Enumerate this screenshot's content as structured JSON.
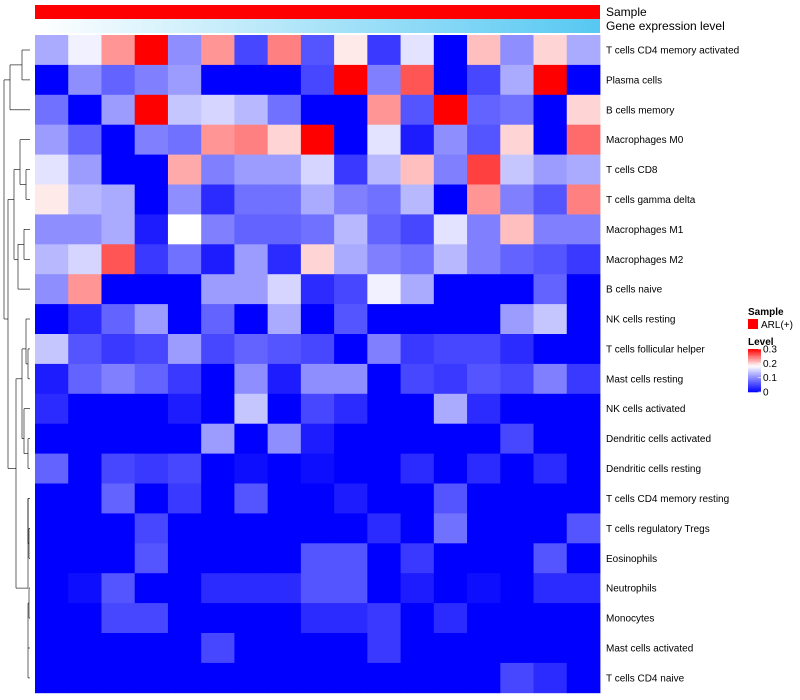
{
  "chart_data": {
    "type": "heatmap",
    "title": "",
    "annotation_tracks": [
      {
        "name": "Sample",
        "color_start": "#ff0000",
        "color_end": "#ff0000"
      },
      {
        "name": "Gene expression level",
        "color_start": "#ffffff",
        "color_end": "#56c8f2"
      }
    ],
    "rows": [
      "T cells CD4 memory activated",
      "Plasma cells",
      "B cells memory",
      "Macrophages M0",
      "T cells CD8",
      "T cells gamma delta",
      "Macrophages M1",
      "Macrophages M2",
      "B cells naive",
      "NK cells resting",
      "T cells follicular helper",
      "Mast cells resting",
      "NK cells activated",
      "Dendritic cells activated",
      "Dendritic cells resting",
      "T cells CD4 memory resting",
      "T cells regulatory  Tregs",
      "Eosinophils",
      "Neutrophils",
      "Monocytes",
      "Mast cells activated",
      "T cells CD4 naive"
    ],
    "n_columns": 17,
    "values": [
      [
        0.12,
        0.17,
        0.23,
        0.3,
        0.1,
        0.23,
        0.05,
        0.24,
        0.06,
        0.19,
        0.04,
        0.16,
        0.0,
        0.21,
        0.1,
        0.2,
        0.12
      ],
      [
        0.0,
        0.1,
        0.07,
        0.09,
        0.11,
        0.0,
        0.0,
        0.0,
        0.05,
        0.3,
        0.09,
        0.26,
        0.0,
        0.05,
        0.12,
        0.3,
        0.0
      ],
      [
        0.08,
        0.0,
        0.11,
        0.3,
        0.14,
        0.15,
        0.13,
        0.08,
        0.0,
        0.0,
        0.23,
        0.06,
        0.3,
        0.07,
        0.08,
        0.0,
        0.2
      ],
      [
        0.11,
        0.07,
        0.0,
        0.09,
        0.08,
        0.23,
        0.24,
        0.2,
        0.3,
        0.0,
        0.16,
        0.02,
        0.1,
        0.06,
        0.2,
        0.0,
        0.25
      ],
      [
        0.16,
        0.11,
        0.0,
        0.0,
        0.22,
        0.09,
        0.11,
        0.11,
        0.15,
        0.04,
        0.13,
        0.21,
        0.09,
        0.27,
        0.14,
        0.11,
        0.12
      ],
      [
        0.19,
        0.13,
        0.12,
        0.0,
        0.1,
        0.03,
        0.08,
        0.08,
        0.12,
        0.09,
        0.08,
        0.13,
        0.0,
        0.23,
        0.09,
        0.06,
        0.24
      ],
      [
        0.1,
        0.1,
        0.12,
        0.02,
        0.18,
        0.09,
        0.07,
        0.07,
        0.08,
        0.13,
        0.07,
        0.05,
        0.16,
        0.09,
        0.21,
        0.09,
        0.09
      ],
      [
        0.13,
        0.15,
        0.26,
        0.04,
        0.08,
        0.02,
        0.11,
        0.03,
        0.2,
        0.12,
        0.09,
        0.08,
        0.13,
        0.09,
        0.07,
        0.06,
        0.04
      ],
      [
        0.1,
        0.23,
        0.0,
        0.0,
        0.0,
        0.11,
        0.11,
        0.15,
        0.03,
        0.05,
        0.17,
        0.12,
        0.0,
        0.0,
        0.0,
        0.07,
        0.0
      ],
      [
        0.0,
        0.03,
        0.07,
        0.11,
        0.0,
        0.07,
        0.0,
        0.12,
        0.0,
        0.06,
        0.0,
        0.0,
        0.0,
        0.0,
        0.11,
        0.14,
        0.0
      ],
      [
        0.14,
        0.06,
        0.04,
        0.05,
        0.11,
        0.05,
        0.07,
        0.06,
        0.05,
        0.0,
        0.09,
        0.04,
        0.05,
        0.05,
        0.03,
        0.0,
        0.0
      ],
      [
        0.02,
        0.07,
        0.09,
        0.07,
        0.04,
        0.0,
        0.1,
        0.02,
        0.1,
        0.1,
        0.0,
        0.05,
        0.04,
        0.06,
        0.05,
        0.09,
        0.04
      ],
      [
        0.03,
        0.0,
        0.0,
        0.0,
        0.02,
        0.0,
        0.14,
        0.0,
        0.05,
        0.03,
        0.0,
        0.0,
        0.12,
        0.03,
        0.0,
        0.0,
        0.0
      ],
      [
        0.0,
        0.0,
        0.0,
        0.0,
        0.0,
        0.11,
        0.0,
        0.1,
        0.02,
        0.0,
        0.0,
        0.0,
        0.0,
        0.0,
        0.05,
        0.0,
        0.0
      ],
      [
        0.07,
        0.0,
        0.05,
        0.04,
        0.05,
        0.0,
        0.01,
        0.0,
        0.01,
        0.0,
        0.0,
        0.03,
        0.0,
        0.03,
        0.0,
        0.03,
        0.0
      ],
      [
        0.0,
        0.0,
        0.07,
        0.0,
        0.04,
        0.0,
        0.06,
        0.0,
        0.0,
        0.02,
        0.0,
        0.0,
        0.06,
        0.0,
        0.0,
        0.0,
        0.0
      ],
      [
        0.0,
        0.0,
        0.0,
        0.05,
        0.0,
        0.0,
        0.0,
        0.0,
        0.0,
        0.0,
        0.03,
        0.0,
        0.08,
        0.0,
        0.0,
        0.0,
        0.06
      ],
      [
        0.0,
        0.0,
        0.0,
        0.06,
        0.0,
        0.0,
        0.0,
        0.0,
        0.06,
        0.06,
        0.0,
        0.04,
        0.0,
        0.0,
        0.0,
        0.06,
        0.0
      ],
      [
        0.0,
        0.01,
        0.06,
        0.0,
        0.0,
        0.03,
        0.03,
        0.03,
        0.06,
        0.06,
        0.0,
        0.02,
        0.0,
        0.01,
        0.0,
        0.03,
        0.03
      ],
      [
        0.0,
        0.0,
        0.05,
        0.05,
        0.0,
        0.0,
        0.0,
        0.0,
        0.03,
        0.03,
        0.04,
        0.0,
        0.03,
        0.0,
        0.0,
        0.0,
        0.0
      ],
      [
        0.0,
        0.0,
        0.0,
        0.0,
        0.0,
        0.05,
        0.0,
        0.0,
        0.0,
        0.0,
        0.04,
        0.0,
        0.0,
        0.0,
        0.0,
        0.0,
        0.0
      ],
      [
        0.0,
        0.0,
        0.0,
        0.0,
        0.0,
        0.0,
        0.0,
        0.0,
        0.0,
        0.0,
        0.0,
        0.0,
        0.0,
        0.0,
        0.05,
        0.03,
        0.0
      ]
    ],
    "value_range": [
      0,
      0.3
    ],
    "color_scale": {
      "low": "#0000ff",
      "mid": "#ffffff",
      "high": "#ff0000",
      "mid_value": 0.18
    },
    "legend": {
      "placement": "right",
      "sample_title": "Sample",
      "sample_entry": "ARL(+)",
      "sample_color": "#ff0000",
      "level_title": "Level",
      "level_ticks": [
        0.3,
        0.2,
        0.1,
        0
      ],
      "level_tick_labels": [
        "0.3",
        "0.2",
        "0.1",
        "0"
      ]
    },
    "dendrogram": {
      "side": "left"
    }
  }
}
